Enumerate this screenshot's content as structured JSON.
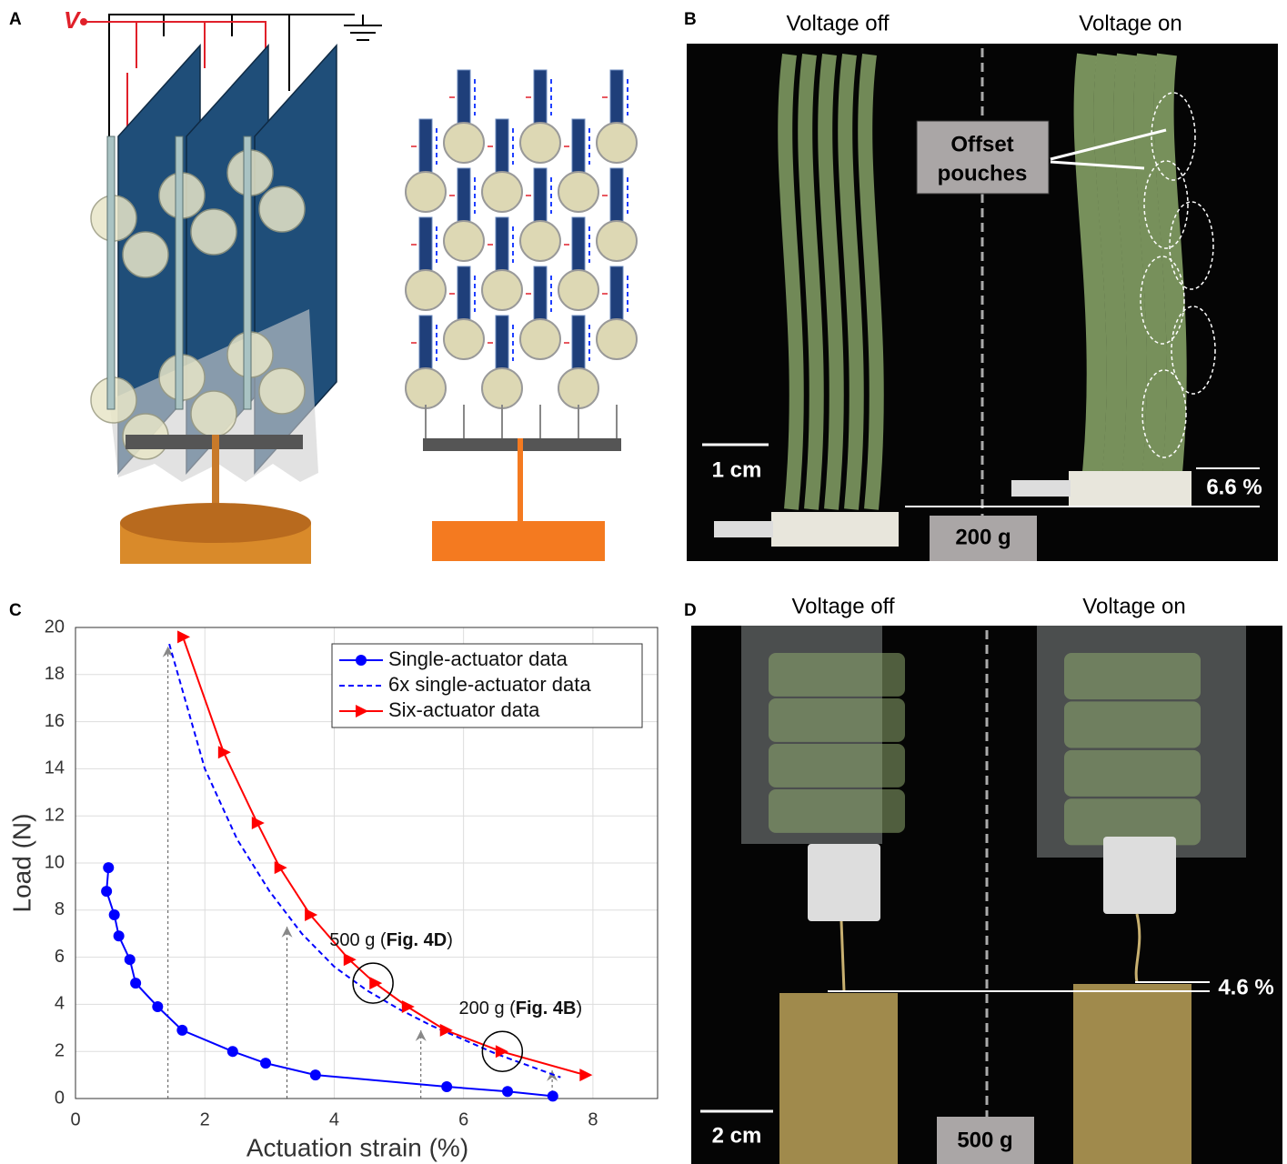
{
  "panel_a": {
    "label": "A",
    "voltage": "V"
  },
  "panel_b": {
    "label": "B",
    "left_title": "Voltage off",
    "right_title": "Voltage on",
    "callout": [
      "Offset",
      "pouches"
    ],
    "scale_bar": "1 cm",
    "strain": "6.6 %",
    "mass": "200 g"
  },
  "panel_c": {
    "label": "C"
  },
  "panel_d": {
    "label": "D",
    "left_title": "Voltage off",
    "right_title": "Voltage on",
    "scale_bar": "2 cm",
    "strain": "4.6 %",
    "mass": "500 g"
  },
  "chart_data": {
    "type": "line",
    "xlabel": "Actuation strain (%)",
    "ylabel": "Load (N)",
    "xlim": [
      0,
      9
    ],
    "ylim": [
      0,
      20
    ],
    "xticks": [
      0,
      2,
      4,
      6,
      8
    ],
    "yticks": [
      0,
      2,
      4,
      6,
      8,
      10,
      12,
      14,
      16,
      18,
      20
    ],
    "grid": true,
    "legend": "upper right",
    "series": [
      {
        "name": "Single-actuator data",
        "color": "#0000ff",
        "marker": "circle",
        "dashed": false,
        "x": [
          0.51,
          0.48,
          0.6,
          0.67,
          0.84,
          0.93,
          1.27,
          1.65,
          2.43,
          2.94,
          3.71,
          5.74,
          6.68,
          7.38
        ],
        "values": [
          9.8,
          8.8,
          7.8,
          6.9,
          5.9,
          4.9,
          3.9,
          2.9,
          2.0,
          1.5,
          1.0,
          0.5,
          0.3,
          0.1
        ]
      },
      {
        "name": "6x single-actuator data",
        "color": "#0000ff",
        "marker": "none",
        "dashed": true,
        "x": [
          1.45,
          2.0,
          2.5,
          3.0,
          3.5,
          4.0,
          4.5,
          5.0,
          5.5,
          6.0,
          6.5,
          7.0,
          7.5
        ],
        "values": [
          19.3,
          14.0,
          11.0,
          8.8,
          7.0,
          5.6,
          4.6,
          3.8,
          3.1,
          2.5,
          1.9,
          1.4,
          0.9
        ]
      },
      {
        "name": "Six-actuator data",
        "color": "#ff0000",
        "marker": "triangle",
        "dashed": false,
        "x": [
          1.66,
          2.29,
          2.81,
          3.16,
          3.63,
          4.23,
          4.63,
          5.13,
          5.72,
          6.58,
          7.88
        ],
        "values": [
          19.6,
          14.7,
          11.7,
          9.8,
          7.8,
          5.9,
          4.9,
          3.9,
          2.9,
          2.0,
          1.0
        ]
      }
    ],
    "arrows": [
      {
        "x": 1.43,
        "y": 19.2
      },
      {
        "x": 3.27,
        "y": 7.3
      },
      {
        "x": 5.34,
        "y": 2.9
      },
      {
        "x": 7.37,
        "y": 1.2
      }
    ],
    "annotations": [
      {
        "x": 4.6,
        "y": 4.9,
        "label_parts": [
          "500 g (",
          "Fig. 4D",
          ")"
        ]
      },
      {
        "x": 6.6,
        "y": 2.0,
        "label_parts": [
          "200 g (",
          "Fig. 4B",
          ")"
        ]
      }
    ]
  }
}
